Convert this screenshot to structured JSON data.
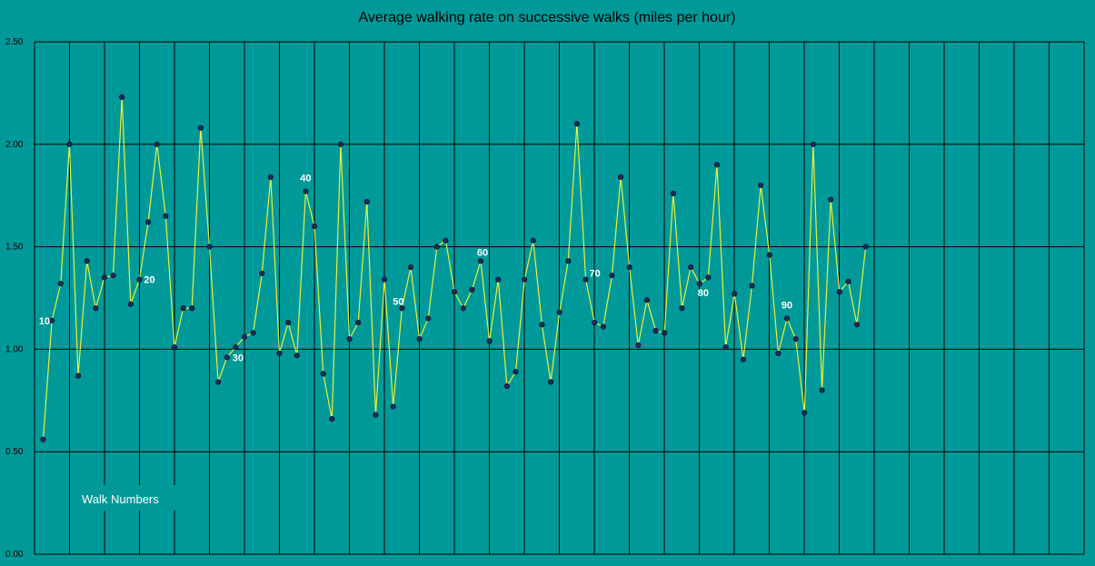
{
  "colors": {
    "background": "#009999",
    "line": "#e6f23c",
    "marker": "#1f2a50",
    "grid": "#000000",
    "label": "#ffffff",
    "title": "#000000",
    "legend_box": "#009999"
  },
  "chart_data": {
    "type": "line",
    "title": "Average walking rate on successive walks (miles per hour)",
    "ylim": [
      0,
      2.5
    ],
    "ytick_labels": [
      "0.00",
      "0.50",
      "1.00",
      "1.50",
      "2.00",
      "2.50"
    ],
    "grid": true,
    "legend_text": "Walk Numbers",
    "legend_position": "bottom-left",
    "series": [
      {
        "values": [
          0.56,
          1.14,
          1.32,
          2.0,
          0.87,
          1.43,
          1.2,
          1.35,
          1.36,
          2.23,
          1.22,
          1.34,
          1.62,
          2.0,
          1.65,
          1.01,
          1.2,
          1.2,
          2.08,
          1.5,
          0.84,
          0.96,
          1.01,
          1.06,
          1.08,
          1.37,
          1.84,
          0.98,
          1.13,
          0.97,
          1.77,
          1.6,
          0.88,
          0.66,
          2.0,
          1.05,
          1.13,
          1.72,
          0.68,
          1.34,
          0.72,
          1.2,
          1.4,
          1.05,
          1.15,
          1.5,
          1.53,
          1.28,
          1.2,
          1.29,
          1.43,
          1.04,
          1.34,
          0.82,
          0.89,
          1.34,
          1.53,
          1.12,
          0.84,
          1.18,
          1.43,
          2.1,
          1.34,
          1.13,
          1.11,
          1.36,
          1.84,
          1.4,
          1.02,
          1.24,
          1.09,
          1.08,
          1.76,
          1.2,
          1.4,
          1.32,
          1.35,
          1.9,
          1.01,
          1.27,
          0.95,
          1.31,
          1.8,
          1.46,
          0.98,
          1.15,
          1.05,
          0.69,
          2.0,
          0.8,
          1.73,
          1.28,
          1.33,
          1.12,
          1.5
        ]
      }
    ],
    "data_labels": [
      {
        "index": 1,
        "text": "10"
      },
      {
        "index": 11,
        "text": "20"
      },
      {
        "index": 21,
        "text": "30"
      },
      {
        "index": 30,
        "text": "40"
      },
      {
        "index": 41,
        "text": "50"
      },
      {
        "index": 50,
        "text": "60"
      },
      {
        "index": 62,
        "text": "70"
      },
      {
        "index": 75,
        "text": "80"
      },
      {
        "index": 85,
        "text": "90"
      }
    ]
  }
}
